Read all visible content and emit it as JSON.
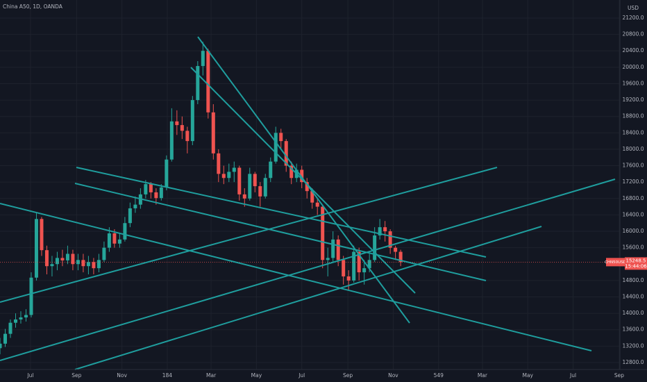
{
  "chart_data": {
    "type": "candlestick",
    "title": "China A50, 1D, OANDA",
    "y_unit": "USD",
    "symbol_label": "CHN50USD",
    "countdown": "15:44:06",
    "last_price": 15248.5,
    "up_color": "#26a69a",
    "down_color": "#ef5350",
    "grid": true,
    "xlim": [
      -41,
      793
    ],
    "ylim": [
      12630,
      21640
    ],
    "xticks": [
      {
        "value": 0,
        "label": "Jul"
      },
      {
        "value": 62,
        "label": "Sep"
      },
      {
        "value": 123,
        "label": "Nov"
      },
      184,
      {
        "value": 243,
        "label": "Mar"
      },
      {
        "value": 304,
        "label": "May"
      },
      {
        "value": 365,
        "label": "Jul"
      },
      {
        "value": 427,
        "label": "Sep"
      },
      {
        "value": 488,
        "label": "Nov"
      },
      549,
      {
        "value": 608,
        "label": "Mar"
      },
      {
        "value": 669,
        "label": "May"
      },
      {
        "value": 730,
        "label": "Jul"
      },
      {
        "value": 792,
        "label": "Sep"
      }
    ],
    "yticks": [
      {
        "value": 21200,
        "label": "21200.0"
      },
      {
        "value": 20800,
        "label": "20800.0"
      },
      {
        "value": 20400,
        "label": "20400.0"
      },
      {
        "value": 20000,
        "label": "20000.0"
      },
      {
        "value": 19600,
        "label": "19600.0"
      },
      {
        "value": 19200,
        "label": "19200.0"
      },
      {
        "value": 18800,
        "label": "18800.0"
      },
      {
        "value": 18400,
        "label": "18400.0"
      },
      {
        "value": 18000,
        "label": "18000.0"
      },
      {
        "value": 17600,
        "label": "17600.0"
      },
      {
        "value": 17200,
        "label": "17200.0"
      },
      {
        "value": 16800,
        "label": "16800.0"
      },
      {
        "value": 16400,
        "label": "16400.0"
      },
      {
        "value": 16000,
        "label": "16000.0"
      },
      {
        "value": 15600,
        "label": "15600.0"
      },
      {
        "value": 14800,
        "label": "14800.0"
      },
      {
        "value": 14400,
        "label": "14400.0"
      },
      {
        "value": 14000,
        "label": "14000.0"
      },
      {
        "value": 13600,
        "label": "13600.0"
      },
      {
        "value": 13200,
        "label": "13200.0"
      },
      {
        "value": 12800,
        "label": "12800.0"
      }
    ],
    "x": [
      -41,
      -34,
      -27,
      -20,
      -13,
      -6,
      1,
      8,
      15,
      22,
      29,
      36,
      43,
      50,
      57,
      64,
      71,
      78,
      85,
      92,
      99,
      106,
      113,
      120,
      127,
      134,
      141,
      148,
      155,
      162,
      169,
      176,
      183,
      190,
      197,
      204,
      211,
      218,
      225,
      232,
      239,
      246,
      253,
      260,
      267,
      274,
      281,
      288,
      295,
      302,
      309,
      316,
      323,
      330,
      337,
      344,
      351,
      358,
      365,
      372,
      379,
      386,
      393,
      400,
      407,
      414,
      421,
      428,
      435,
      442,
      449,
      456,
      463,
      470,
      477,
      484,
      491,
      498
    ],
    "open": [
      13150,
      13260,
      13500,
      13770,
      13850,
      13900,
      13960,
      14870,
      16300,
      15540,
      15150,
      15200,
      15350,
      15290,
      15450,
      15200,
      15300,
      15150,
      15250,
      15100,
      15300,
      15600,
      15950,
      15700,
      15800,
      16200,
      16560,
      16650,
      16900,
      17150,
      16950,
      16810,
      17070,
      17750,
      18680,
      18590,
      18450,
      18200,
      19200,
      20030,
      20400,
      18900,
      17900,
      17400,
      17300,
      17450,
      17550,
      16900,
      16800,
      17400,
      17100,
      16850,
      17300,
      17700,
      18400,
      18200,
      17600,
      17300,
      17500,
      17200,
      16980,
      16700,
      16600,
      15300,
      15350,
      15800,
      15300,
      14900,
      14800,
      15500,
      15000,
      15100,
      15300,
      15900,
      16100,
      16000,
      15600,
      15500
    ],
    "high": [
      13400,
      13620,
      13850,
      14000,
      14050,
      14100,
      15000,
      16450,
      16350,
      15650,
      15400,
      15500,
      15550,
      15650,
      15550,
      15450,
      15450,
      15400,
      15350,
      15450,
      15750,
      16100,
      16050,
      15950,
      16350,
      16700,
      16850,
      17050,
      17250,
      17200,
      17050,
      17150,
      17850,
      19000,
      18950,
      18800,
      18550,
      19300,
      20150,
      20620,
      20450,
      19100,
      18000,
      17600,
      17650,
      17700,
      17600,
      17050,
      17550,
      17450,
      17200,
      17400,
      17800,
      18550,
      18500,
      18250,
      17700,
      17650,
      17600,
      17300,
      17050,
      16800,
      16650,
      15600,
      16000,
      15900,
      15400,
      15050,
      15650,
      15600,
      15300,
      15450,
      16100,
      16300,
      16250,
      16050,
      15650,
      15550
    ],
    "low": [
      13000,
      13180,
      13400,
      13650,
      13750,
      13800,
      13900,
      14800,
      15400,
      14950,
      14900,
      15050,
      15150,
      15200,
      15050,
      15050,
      15000,
      14950,
      14950,
      15000,
      15250,
      15500,
      15600,
      15600,
      15750,
      16100,
      16450,
      16550,
      16800,
      16800,
      16650,
      16750,
      17000,
      17700,
      18350,
      18250,
      17900,
      18100,
      19100,
      19800,
      18750,
      17750,
      17200,
      17150,
      17200,
      17200,
      16750,
      16600,
      16750,
      16950,
      16600,
      16800,
      17200,
      17650,
      18000,
      17450,
      17150,
      17200,
      17050,
      16800,
      16550,
      16400,
      15100,
      14900,
      15250,
      15150,
      14700,
      14550,
      14750,
      14800,
      14700,
      15000,
      15250,
      15800,
      15750,
      15450,
      15300,
      15150
    ],
    "close": [
      13260,
      13500,
      13770,
      13850,
      13900,
      13960,
      14870,
      16300,
      15540,
      15150,
      15200,
      15350,
      15290,
      15450,
      15200,
      15300,
      15150,
      15250,
      15100,
      15300,
      15600,
      15950,
      15700,
      15800,
      16200,
      16560,
      16650,
      16900,
      17150,
      16950,
      16810,
      17070,
      17750,
      18680,
      18590,
      18450,
      18200,
      19200,
      20030,
      20400,
      18900,
      17900,
      17400,
      17300,
      17450,
      17550,
      16900,
      16800,
      17400,
      17100,
      16850,
      17300,
      17700,
      18400,
      18200,
      17600,
      17300,
      17500,
      17200,
      16980,
      16700,
      16600,
      15300,
      15350,
      15800,
      15300,
      14900,
      14800,
      15500,
      15000,
      15100,
      15300,
      15900,
      16100,
      16000,
      15600,
      15500,
      15248.5
    ]
  }
}
